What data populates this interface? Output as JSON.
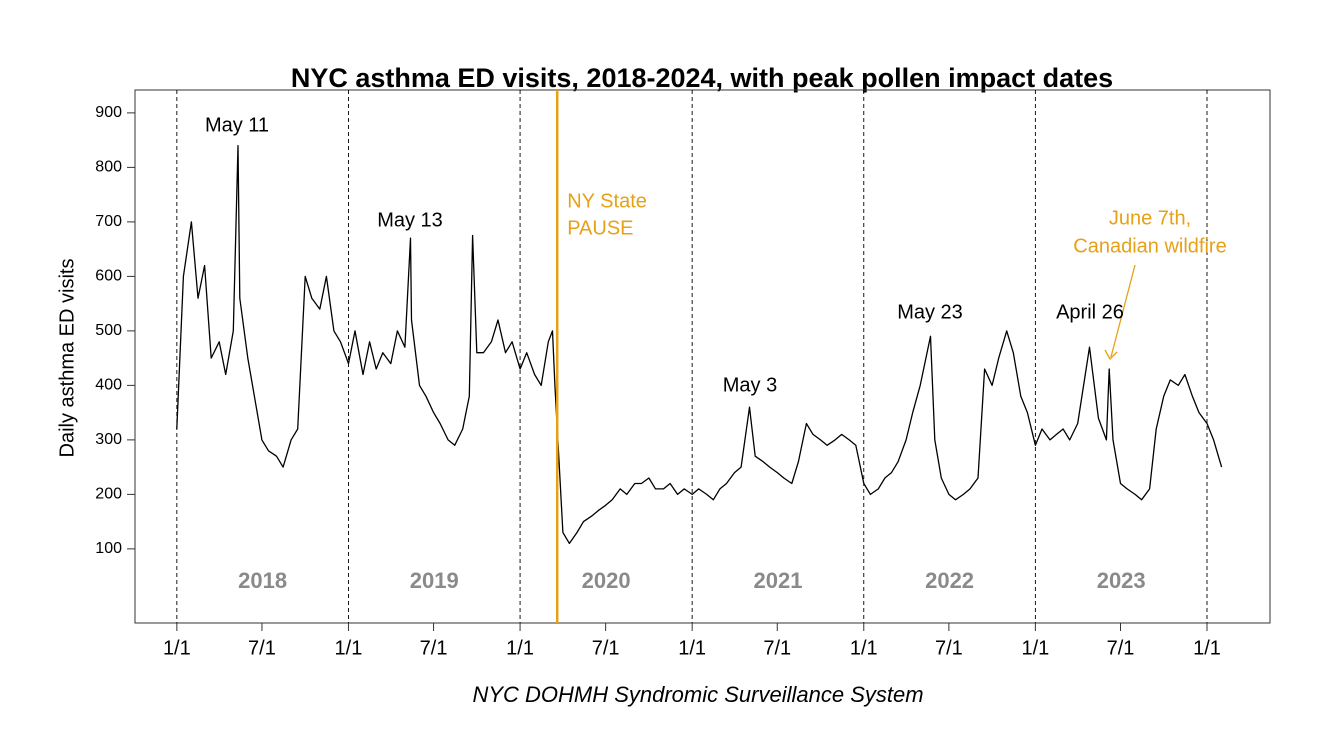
{
  "chart_data": {
    "type": "line",
    "title": "NYC asthma ED visits, 2018-2024, with peak pollen impact dates",
    "ylabel": "Daily asthma ED visits",
    "source": "NYC DOHMH Syndromic Surveillance System",
    "color": "#000000",
    "x": [
      "2018-01-01",
      "2018-01-15",
      "2018-02-01",
      "2018-02-15",
      "2018-03-01",
      "2018-03-15",
      "2018-04-01",
      "2018-04-15",
      "2018-05-01",
      "2018-05-11",
      "2018-05-15",
      "2018-06-01",
      "2018-06-15",
      "2018-07-01",
      "2018-07-15",
      "2018-08-01",
      "2018-08-15",
      "2018-09-01",
      "2018-09-15",
      "2018-10-01",
      "2018-10-15",
      "2018-11-01",
      "2018-11-15",
      "2018-12-01",
      "2018-12-15",
      "2019-01-01",
      "2019-01-15",
      "2019-02-01",
      "2019-02-15",
      "2019-03-01",
      "2019-03-15",
      "2019-04-01",
      "2019-04-15",
      "2019-05-01",
      "2019-05-13",
      "2019-05-15",
      "2019-06-01",
      "2019-06-15",
      "2019-07-01",
      "2019-07-15",
      "2019-08-01",
      "2019-08-15",
      "2019-09-01",
      "2019-09-15",
      "2019-09-22",
      "2019-10-01",
      "2019-10-15",
      "2019-11-01",
      "2019-11-15",
      "2019-12-01",
      "2019-12-15",
      "2020-01-01",
      "2020-01-15",
      "2020-02-01",
      "2020-02-15",
      "2020-03-01",
      "2020-03-10",
      "2020-03-15",
      "2020-04-01",
      "2020-04-15",
      "2020-05-01",
      "2020-05-15",
      "2020-06-01",
      "2020-06-15",
      "2020-07-01",
      "2020-07-15",
      "2020-08-01",
      "2020-08-15",
      "2020-09-01",
      "2020-09-15",
      "2020-10-01",
      "2020-10-15",
      "2020-11-01",
      "2020-11-15",
      "2020-12-01",
      "2020-12-15",
      "2021-01-01",
      "2021-01-15",
      "2021-02-01",
      "2021-02-15",
      "2021-03-01",
      "2021-03-15",
      "2021-04-01",
      "2021-04-15",
      "2021-05-03",
      "2021-05-15",
      "2021-06-01",
      "2021-06-15",
      "2021-07-01",
      "2021-07-15",
      "2021-08-01",
      "2021-08-15",
      "2021-09-01",
      "2021-09-15",
      "2021-10-01",
      "2021-10-15",
      "2021-11-01",
      "2021-11-15",
      "2021-12-01",
      "2021-12-15",
      "2022-01-01",
      "2022-01-15",
      "2022-02-01",
      "2022-02-15",
      "2022-03-01",
      "2022-03-15",
      "2022-04-01",
      "2022-04-15",
      "2022-05-01",
      "2022-05-23",
      "2022-06-01",
      "2022-06-15",
      "2022-07-01",
      "2022-07-15",
      "2022-08-01",
      "2022-08-15",
      "2022-09-01",
      "2022-09-15",
      "2022-10-01",
      "2022-10-15",
      "2022-11-01",
      "2022-11-15",
      "2022-12-01",
      "2022-12-15",
      "2023-01-01",
      "2023-01-15",
      "2023-02-01",
      "2023-02-15",
      "2023-03-01",
      "2023-03-15",
      "2023-04-01",
      "2023-04-26",
      "2023-05-15",
      "2023-06-01",
      "2023-06-07",
      "2023-06-15",
      "2023-07-01",
      "2023-07-15",
      "2023-08-01",
      "2023-08-15",
      "2023-09-01",
      "2023-09-15",
      "2023-10-01",
      "2023-10-15",
      "2023-11-01",
      "2023-11-15",
      "2023-12-01",
      "2023-12-15",
      "2024-01-01",
      "2024-01-15",
      "2024-02-01"
    ],
    "values": [
      320,
      600,
      700,
      560,
      620,
      450,
      480,
      420,
      500,
      840,
      560,
      450,
      380,
      300,
      280,
      270,
      250,
      300,
      320,
      600,
      560,
      540,
      600,
      500,
      480,
      440,
      500,
      420,
      480,
      430,
      460,
      440,
      500,
      470,
      670,
      520,
      400,
      380,
      350,
      330,
      300,
      290,
      320,
      380,
      675,
      460,
      460,
      480,
      520,
      460,
      480,
      430,
      460,
      420,
      400,
      480,
      500,
      400,
      130,
      110,
      130,
      150,
      160,
      170,
      180,
      190,
      210,
      200,
      220,
      220,
      230,
      210,
      210,
      220,
      200,
      210,
      200,
      210,
      200,
      190,
      210,
      220,
      240,
      250,
      360,
      270,
      260,
      250,
      240,
      230,
      220,
      260,
      330,
      310,
      300,
      290,
      300,
      310,
      300,
      290,
      220,
      200,
      210,
      230,
      240,
      260,
      300,
      350,
      400,
      490,
      300,
      230,
      200,
      190,
      200,
      210,
      230,
      430,
      400,
      450,
      500,
      460,
      380,
      350,
      290,
      320,
      300,
      310,
      320,
      300,
      330,
      470,
      340,
      300,
      430,
      300,
      220,
      210,
      200,
      190,
      210,
      320,
      380,
      410,
      400,
      420,
      380,
      350,
      330,
      300,
      250
    ],
    "xlim": [
      "2017-10-04",
      "2024-05-14"
    ],
    "xticks": [
      {
        "value": "2018-01-01",
        "label": "1/1"
      },
      {
        "value": "2018-07-01",
        "label": "7/1"
      },
      {
        "value": "2019-01-01",
        "label": "1/1"
      },
      {
        "value": "2019-07-01",
        "label": "7/1"
      },
      {
        "value": "2020-01-01",
        "label": "1/1"
      },
      {
        "value": "2020-07-01",
        "label": "7/1"
      },
      {
        "value": "2021-01-01",
        "label": "1/1"
      },
      {
        "value": "2021-07-01",
        "label": "7/1"
      },
      {
        "value": "2022-01-01",
        "label": "1/1"
      },
      {
        "value": "2022-07-01",
        "label": "7/1"
      },
      {
        "value": "2023-01-01",
        "label": "1/1"
      },
      {
        "value": "2023-07-01",
        "label": "7/1"
      },
      {
        "value": "2024-01-01",
        "label": "1/1"
      }
    ],
    "ylim": [
      -36,
      942
    ],
    "yticks": [
      100,
      200,
      300,
      400,
      500,
      600,
      700,
      800,
      900
    ],
    "year_lines": [
      "2018-01-01",
      "2019-01-01",
      "2020-01-01",
      "2021-01-01",
      "2022-01-01",
      "2023-01-01",
      "2024-01-01"
    ],
    "year_labels": [
      "2018",
      "2019",
      "2020",
      "2021",
      "2022",
      "2023"
    ],
    "year_label_color": "#8a8a8a",
    "event": {
      "x": "2020-03-20",
      "label": [
        "NY State",
        "PAUSE"
      ],
      "color": "#e6a117"
    },
    "annotations": [
      "May 11",
      "May 13",
      "May 3",
      "May 23",
      "April 26"
    ],
    "wildfire_note": {
      "text": [
        "June 7th,",
        "Canadian wildfire"
      ],
      "color": "#e6a117"
    }
  }
}
